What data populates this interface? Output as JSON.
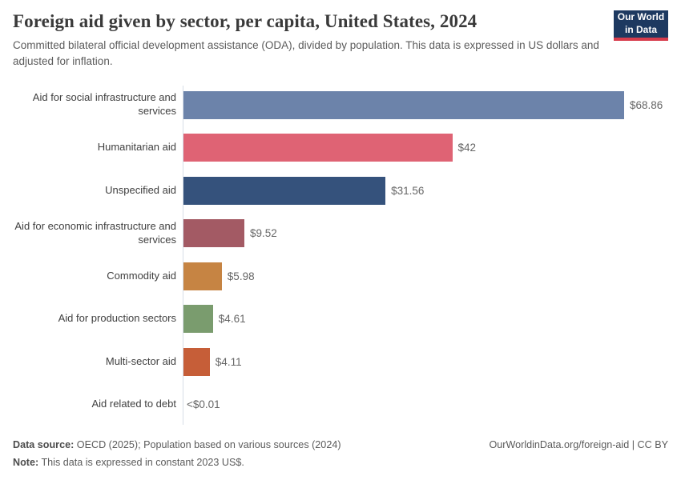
{
  "header": {
    "title": "Foreign aid given by sector, per capita, United States, 2024",
    "subtitle": "Committed bilateral official development assistance (ODA), divided by population. This data is expressed in US dollars and adjusted for inflation.",
    "logo": {
      "line1": "Our World",
      "line2": "in Data"
    }
  },
  "chart_data": {
    "type": "bar",
    "orientation": "horizontal",
    "title": "Foreign aid given by sector, per capita, United States, 2024",
    "xlabel": "",
    "ylabel": "",
    "xlim": [
      0,
      68.86
    ],
    "grid": false,
    "legend": false,
    "categories": [
      "Aid for social infrastructure and services",
      "Humanitarian aid",
      "Unspecified aid",
      "Aid for economic infrastructure and services",
      "Commodity aid",
      "Aid for production sectors",
      "Multi-sector aid",
      "Aid related to debt"
    ],
    "values": [
      68.86,
      42,
      31.56,
      9.52,
      5.98,
      4.61,
      4.11,
      0.01
    ],
    "value_labels": [
      "$68.86",
      "$42",
      "$31.56",
      "$9.52",
      "$5.98",
      "$4.61",
      "$4.11",
      "<$0.01"
    ],
    "bar_colors": [
      "#6c83aa",
      "#df6374",
      "#35527c",
      "#a35a64",
      "#c68443",
      "#7a9c6e",
      "#c65e38",
      "#cccccc"
    ]
  },
  "footer": {
    "source_label": "Data source:",
    "source_text": " OECD (2025); Population based on various sources (2024)",
    "note_label": "Note:",
    "note_text": " This data is expressed in constant 2023 US$.",
    "link": "OurWorldinData.org/foreign-aid | CC BY"
  },
  "colors": {
    "logo_bg": "#1d3960",
    "logo_accent": "#d73c4c",
    "axis_line": "#d7dee8",
    "title_text": "#3a3a3a",
    "subtitle_text": "#5b5b5b",
    "label_text": "#404040",
    "value_text": "#666666"
  }
}
